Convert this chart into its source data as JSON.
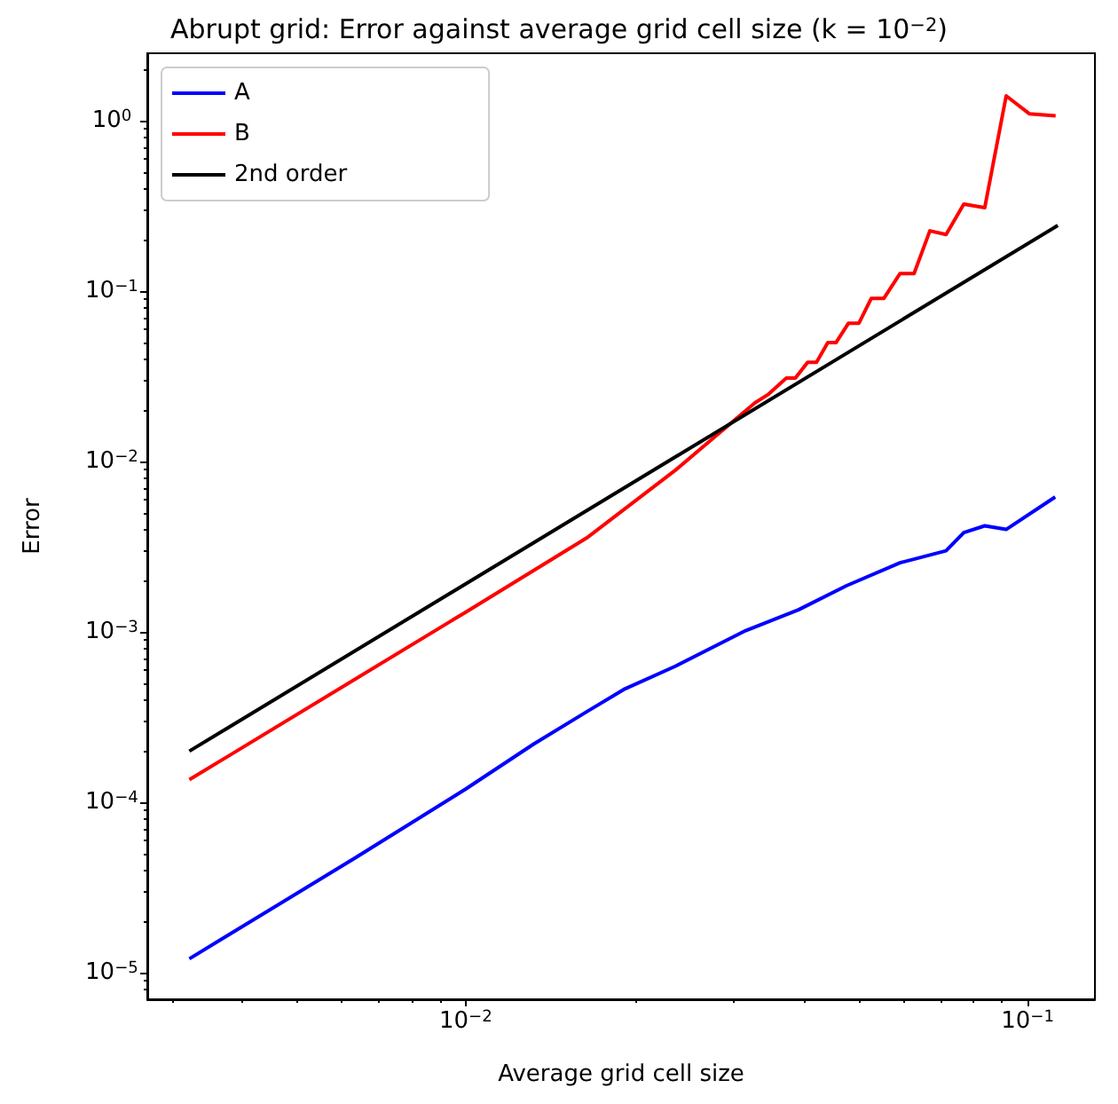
{
  "chart_data": {
    "type": "line",
    "title": "Abrupt grid: Error against average grid cell size (k = 10$^{−2}$)",
    "xlabel": "Average grid cell size",
    "ylabel": "Error",
    "log": "xy",
    "grid": false,
    "legend": "top left",
    "xlim": [
      0.00271,
      0.1318
    ],
    "ylim": [
      7e-06,
      2.49
    ],
    "xticks": [
      {
        "value": 0.003,
        "label": null
      },
      {
        "value": 0.004,
        "label": null
      },
      {
        "value": 0.005,
        "label": null
      },
      {
        "value": 0.006,
        "label": null
      },
      {
        "value": 0.007,
        "label": null
      },
      {
        "value": 0.008,
        "label": null
      },
      {
        "value": 0.009,
        "label": null
      },
      {
        "value": 0.01,
        "label": "10$^{−2}$"
      },
      {
        "value": 0.02,
        "label": null
      },
      {
        "value": 0.03,
        "label": null
      },
      {
        "value": 0.04,
        "label": null
      },
      {
        "value": 0.05,
        "label": null
      },
      {
        "value": 0.06,
        "label": null
      },
      {
        "value": 0.07,
        "label": null
      },
      {
        "value": 0.08,
        "label": null
      },
      {
        "value": 0.09,
        "label": null
      },
      {
        "value": 0.1,
        "label": "10$^{−1}$"
      }
    ],
    "yticks": [
      {
        "value": 8e-06,
        "label": null
      },
      {
        "value": 9e-06,
        "label": null
      },
      {
        "value": 1e-05,
        "label": "10$^{−5}$"
      },
      {
        "value": 2e-05,
        "label": null
      },
      {
        "value": 3e-05,
        "label": null
      },
      {
        "value": 4e-05,
        "label": null
      },
      {
        "value": 5e-05,
        "label": null
      },
      {
        "value": 6e-05,
        "label": null
      },
      {
        "value": 7e-05,
        "label": null
      },
      {
        "value": 8e-05,
        "label": null
      },
      {
        "value": 9e-05,
        "label": null
      },
      {
        "value": 0.0001,
        "label": "10$^{−4}$"
      },
      {
        "value": 0.0002,
        "label": null
      },
      {
        "value": 0.0003,
        "label": null
      },
      {
        "value": 0.0004,
        "label": null
      },
      {
        "value": 0.0005,
        "label": null
      },
      {
        "value": 0.0006,
        "label": null
      },
      {
        "value": 0.0007,
        "label": null
      },
      {
        "value": 0.0008,
        "label": null
      },
      {
        "value": 0.0009,
        "label": null
      },
      {
        "value": 0.001,
        "label": "10$^{−3}$"
      },
      {
        "value": 0.002,
        "label": null
      },
      {
        "value": 0.003,
        "label": null
      },
      {
        "value": 0.004,
        "label": null
      },
      {
        "value": 0.005,
        "label": null
      },
      {
        "value": 0.006,
        "label": null
      },
      {
        "value": 0.007,
        "label": null
      },
      {
        "value": 0.008,
        "label": null
      },
      {
        "value": 0.009,
        "label": null
      },
      {
        "value": 0.01,
        "label": "10$^{−2}$"
      },
      {
        "value": 0.02,
        "label": null
      },
      {
        "value": 0.03,
        "label": null
      },
      {
        "value": 0.04,
        "label": null
      },
      {
        "value": 0.05,
        "label": null
      },
      {
        "value": 0.06,
        "label": null
      },
      {
        "value": 0.07,
        "label": null
      },
      {
        "value": 0.08,
        "label": null
      },
      {
        "value": 0.09,
        "label": null
      },
      {
        "value": 0.1,
        "label": "10$^{−1}$"
      },
      {
        "value": 0.2,
        "label": null
      },
      {
        "value": 0.3,
        "label": null
      },
      {
        "value": 0.4,
        "label": null
      },
      {
        "value": 0.5,
        "label": null
      },
      {
        "value": 0.6,
        "label": null
      },
      {
        "value": 0.7,
        "label": null
      },
      {
        "value": 0.8,
        "label": null
      },
      {
        "value": 0.9,
        "label": null
      },
      {
        "value": 1,
        "label": "10$^{0}$"
      },
      {
        "value": 2,
        "label": null
      }
    ],
    "series": [
      {
        "name": "A",
        "color": "#0000ff",
        "x": [
          0.00322,
          0.00637,
          0.01,
          0.0132,
          0.0164,
          0.0191,
          0.0236,
          0.0315,
          0.0391,
          0.0476,
          0.0593,
          0.0716,
          0.077,
          0.0839,
          0.0916,
          0.112
        ],
        "values": [
          1.21e-05,
          4.75e-05,
          0.00012,
          0.00022,
          0.00034,
          0.00046,
          0.00063,
          0.00102,
          0.00135,
          0.00187,
          0.00255,
          0.003,
          0.00383,
          0.0042,
          0.004,
          0.0062
        ]
      },
      {
        "name": "B",
        "color": "#ff0000",
        "x": [
          0.00322,
          0.01,
          0.0164,
          0.0236,
          0.0327,
          0.0346,
          0.0372,
          0.0386,
          0.0406,
          0.0421,
          0.0441,
          0.0456,
          0.048,
          0.0501,
          0.0527,
          0.0555,
          0.0593,
          0.0628,
          0.067,
          0.0716,
          0.077,
          0.0839,
          0.0916,
          0.1007,
          0.1122
        ],
        "values": [
          0.000136,
          0.00131,
          0.00356,
          0.0089,
          0.0221,
          0.0249,
          0.0309,
          0.0309,
          0.0383,
          0.0383,
          0.0499,
          0.0499,
          0.0649,
          0.0649,
          0.0908,
          0.0908,
          0.127,
          0.127,
          0.226,
          0.215,
          0.324,
          0.309,
          1.4,
          1.1,
          1.07
        ]
      },
      {
        "name": "2nd order",
        "color": "#000000",
        "x": [
          0.00322,
          0.1132
        ],
        "values": [
          0.0002,
          0.243
        ]
      }
    ]
  }
}
